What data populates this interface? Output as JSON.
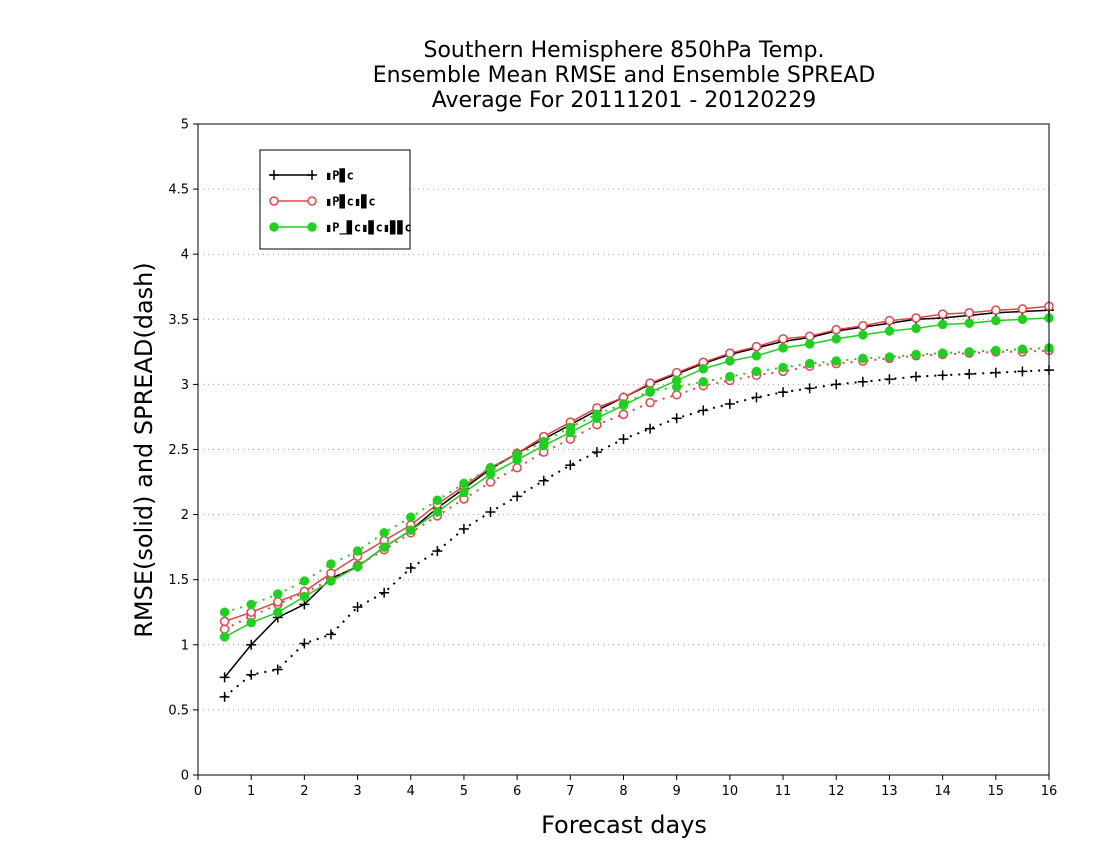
{
  "chart_data": {
    "type": "line",
    "title": [
      "Southern Hemisphere 850hPa Temp.",
      "Ensemble Mean RMSE and Ensemble SPREAD",
      "Average For 20111201 - 20120229"
    ],
    "xlabel": "Forecast days",
    "ylabel": "RMSE(solid) and SPREAD(dash)",
    "xlim": [
      0,
      16
    ],
    "ylim": [
      0,
      5
    ],
    "x_ticks": [
      "0",
      "1",
      "2",
      "3",
      "4",
      "5",
      "6",
      "7",
      "8",
      "9",
      "10",
      "11",
      "12",
      "13",
      "14",
      "15",
      "16"
    ],
    "y_ticks": [
      "0",
      "0.5",
      "1",
      "1.5",
      "2",
      "2.5",
      "3",
      "3.5",
      "4",
      "4.5",
      "5"
    ],
    "grid": true,
    "legend_position": "top-left",
    "x": [
      0.5,
      1,
      1.5,
      2,
      2.5,
      3,
      3.5,
      4,
      4.5,
      5,
      5.5,
      6,
      6.5,
      7,
      7.5,
      8,
      8.5,
      9,
      9.5,
      10,
      10.5,
      11,
      11.5,
      12,
      12.5,
      13,
      13.5,
      14,
      14.5,
      15,
      15.5,
      16
    ],
    "series": [
      {
        "color": "#000000",
        "marker": "plus",
        "legend_glyph": "▮P▊c",
        "rmse": [
          0.75,
          1.0,
          1.21,
          1.31,
          1.51,
          1.6,
          1.75,
          1.88,
          2.05,
          2.2,
          2.35,
          2.47,
          2.58,
          2.69,
          2.8,
          2.9,
          3.0,
          3.08,
          3.16,
          3.23,
          3.28,
          3.33,
          3.36,
          3.41,
          3.44,
          3.47,
          3.5,
          3.51,
          3.53,
          3.55,
          3.56,
          3.57
        ],
        "spread": [
          0.6,
          0.77,
          0.81,
          1.01,
          1.08,
          1.29,
          1.4,
          1.59,
          1.72,
          1.89,
          2.02,
          2.14,
          2.26,
          2.38,
          2.48,
          2.58,
          2.66,
          2.74,
          2.8,
          2.85,
          2.9,
          2.94,
          2.97,
          3.0,
          3.02,
          3.04,
          3.06,
          3.07,
          3.08,
          3.09,
          3.1,
          3.11
        ]
      },
      {
        "color": "#e8434a",
        "marker": "open-circle",
        "legend_glyph": "▮P▊c▮▊c",
        "rmse": [
          1.18,
          1.25,
          1.33,
          1.41,
          1.55,
          1.68,
          1.8,
          1.92,
          2.08,
          2.22,
          2.36,
          2.47,
          2.6,
          2.71,
          2.82,
          2.9,
          3.01,
          3.09,
          3.17,
          3.24,
          3.29,
          3.35,
          3.37,
          3.42,
          3.45,
          3.49,
          3.51,
          3.54,
          3.55,
          3.57,
          3.58,
          3.6
        ],
        "spread": [
          1.12,
          1.22,
          1.31,
          1.4,
          1.5,
          1.61,
          1.73,
          1.86,
          1.99,
          2.12,
          2.25,
          2.36,
          2.48,
          2.58,
          2.69,
          2.77,
          2.86,
          2.92,
          2.99,
          3.03,
          3.07,
          3.1,
          3.14,
          3.16,
          3.18,
          3.2,
          3.22,
          3.23,
          3.24,
          3.25,
          3.25,
          3.26
        ]
      },
      {
        "color": "#1fd11f",
        "marker": "filled-circle",
        "legend_glyph": "▮P_▊c▮▊c▮▊▊c",
        "rmse": [
          1.06,
          1.17,
          1.25,
          1.37,
          1.49,
          1.6,
          1.75,
          1.88,
          2.02,
          2.17,
          2.31,
          2.42,
          2.53,
          2.63,
          2.74,
          2.84,
          2.94,
          3.03,
          3.12,
          3.18,
          3.22,
          3.28,
          3.31,
          3.35,
          3.38,
          3.41,
          3.43,
          3.46,
          3.47,
          3.49,
          3.5,
          3.51
        ],
        "spread": [
          1.25,
          1.31,
          1.39,
          1.49,
          1.62,
          1.72,
          1.86,
          1.98,
          2.11,
          2.24,
          2.36,
          2.46,
          2.56,
          2.67,
          2.77,
          2.85,
          2.95,
          2.98,
          3.02,
          3.06,
          3.1,
          3.13,
          3.16,
          3.18,
          3.2,
          3.21,
          3.23,
          3.24,
          3.25,
          3.26,
          3.27,
          3.28
        ]
      }
    ]
  }
}
